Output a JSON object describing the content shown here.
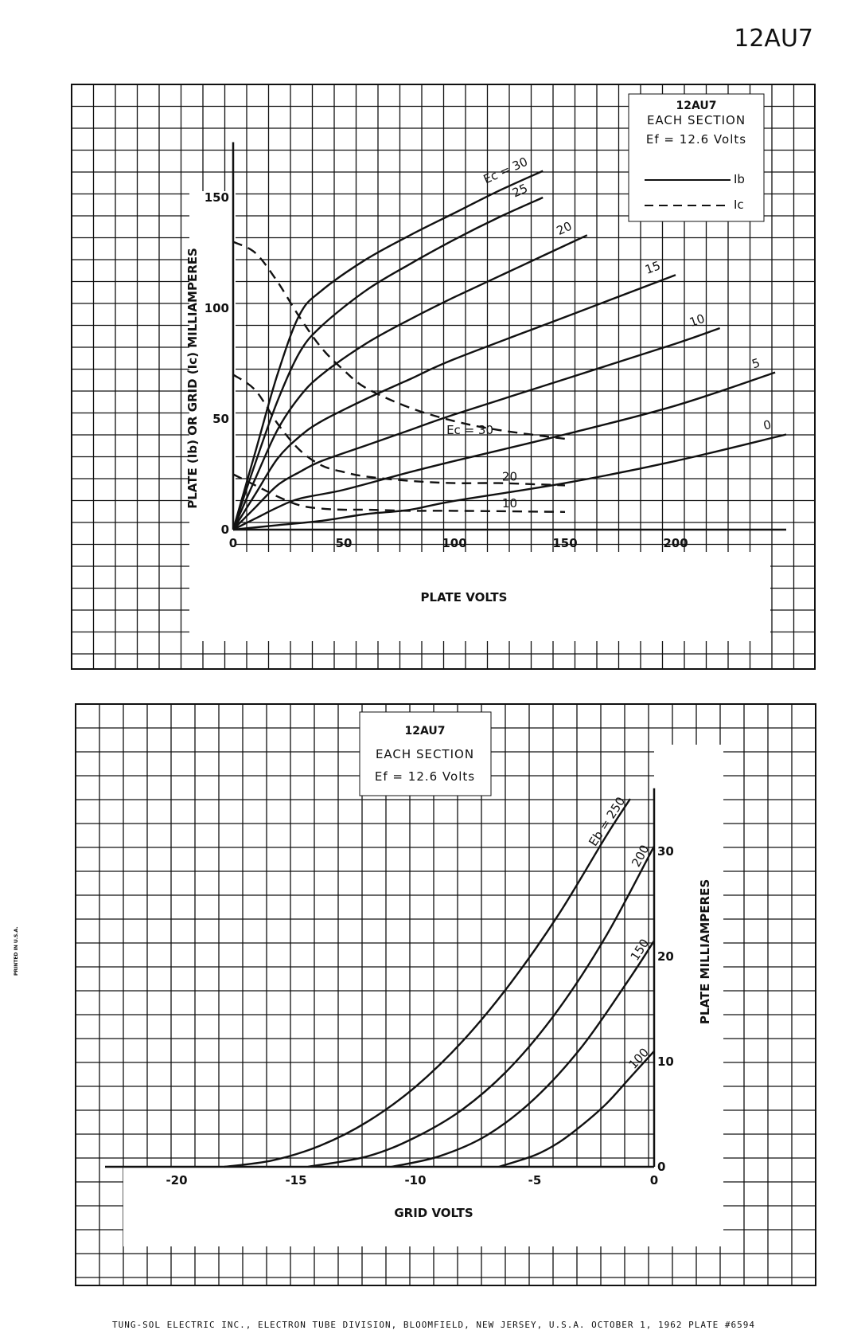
{
  "page": {
    "header_title": "12AU7",
    "footer_text": "TUNG-SOL ELECTRIC INC.,  ELECTRON TUBE DIVISION,  BLOOMFIELD, NEW JERSEY, U.S.A. OCTOBER 1, 1962  PLATE #6594",
    "side_stamp": "PRINTED IN U.S.A."
  },
  "colors": {
    "ink": "#111111",
    "paper": "#ffffff"
  },
  "chart_data": [
    {
      "type": "line",
      "title": "12AU7",
      "subtitle": "EACH SECTION",
      "filament": "Ef = 12.6 Volts",
      "xlabel": "PLATE VOLTS",
      "ylabel": "PLATE (Ib) OR GRID (Ic) MILLIAMPERES",
      "xlim": [
        0,
        250
      ],
      "ylim": [
        0,
        175
      ],
      "xticks": [
        0,
        50,
        100,
        150,
        200
      ],
      "yticks": [
        0,
        50,
        100,
        150
      ],
      "grid": true,
      "legend": {
        "position": "top-right",
        "entries": [
          {
            "label": "Ib",
            "style": "solid"
          },
          {
            "label": "Ic",
            "style": "dashed"
          }
        ]
      },
      "series": [
        {
          "name": "30",
          "quantity": "Ib",
          "label": "Ec = 30",
          "style": "solid",
          "x": [
            0,
            10,
            20,
            30,
            40,
            60,
            80,
            100,
            120,
            140
          ],
          "y": [
            0,
            35,
            70,
            97,
            108,
            122,
            133,
            143,
            153,
            162
          ]
        },
        {
          "name": "25",
          "quantity": "Ib",
          "label": "25",
          "style": "solid",
          "x": [
            0,
            10,
            20,
            30,
            40,
            60,
            80,
            100,
            120,
            140
          ],
          "y": [
            0,
            30,
            58,
            80,
            92,
            108,
            120,
            131,
            141,
            150
          ]
        },
        {
          "name": "20",
          "quantity": "Ib",
          "label": "20",
          "style": "solid",
          "x": [
            0,
            10,
            20,
            30,
            40,
            60,
            80,
            100,
            130,
            160
          ],
          "y": [
            0,
            23,
            45,
            60,
            70,
            84,
            95,
            105,
            119,
            133
          ]
        },
        {
          "name": "15",
          "quantity": "Ib",
          "label": "15",
          "style": "solid",
          "x": [
            0,
            10,
            20,
            30,
            40,
            60,
            80,
            100,
            150,
            200
          ],
          "y": [
            0,
            16,
            32,
            42,
            49,
            59,
            68,
            77,
            96,
            115
          ]
        },
        {
          "name": "10",
          "quantity": "Ib",
          "label": "10",
          "style": "solid",
          "x": [
            0,
            10,
            20,
            30,
            40,
            60,
            80,
            100,
            150,
            200,
            220
          ],
          "y": [
            0,
            10,
            20,
            26,
            31,
            38,
            45,
            52,
            68,
            84,
            91
          ]
        },
        {
          "name": "5",
          "quantity": "Ib",
          "label": "5",
          "style": "solid",
          "x": [
            0,
            10,
            20,
            30,
            50,
            80,
            100,
            150,
            200,
            245
          ],
          "y": [
            0,
            5,
            10,
            14,
            18,
            26,
            31,
            43,
            56,
            71
          ]
        },
        {
          "name": "0",
          "quantity": "Ib",
          "label": "0",
          "style": "solid",
          "x": [
            0,
            20,
            40,
            60,
            80,
            100,
            150,
            200,
            250
          ],
          "y": [
            0,
            2,
            4,
            7,
            9,
            13,
            21,
            31,
            43
          ]
        },
        {
          "name": "30",
          "quantity": "Ic",
          "label": "Ec = 30",
          "style": "dashed",
          "x": [
            0,
            10,
            20,
            30,
            40,
            50,
            60,
            80,
            100,
            120,
            150
          ],
          "y": [
            130,
            125,
            112,
            96,
            82,
            72,
            64,
            55,
            49,
            45,
            41
          ]
        },
        {
          "name": "20",
          "quantity": "Ic",
          "label": "20",
          "style": "dashed",
          "x": [
            0,
            10,
            20,
            30,
            40,
            50,
            60,
            80,
            100,
            120,
            150
          ],
          "y": [
            70,
            63,
            48,
            36,
            29,
            26,
            24,
            22,
            21,
            21,
            20
          ]
        },
        {
          "name": "10",
          "quantity": "Ic",
          "label": "10",
          "style": "dashed",
          "x": [
            0,
            10,
            20,
            30,
            40,
            50,
            60,
            80,
            100,
            150
          ],
          "y": [
            25,
            20,
            15,
            11,
            9.5,
            9,
            9,
            8.5,
            8.5,
            8
          ]
        }
      ]
    },
    {
      "type": "line",
      "title": "12AU7",
      "subtitle": "EACH SECTION",
      "filament": "Ef = 12.6 Volts",
      "xlabel": "GRID VOLTS",
      "ylabel": "PLATE MILLIAMPERES",
      "xlim": [
        -23,
        0
      ],
      "ylim": [
        0,
        36
      ],
      "xticks": [
        -20,
        -15,
        -10,
        -5,
        0
      ],
      "yticks": [
        0,
        10,
        20,
        30
      ],
      "grid": true,
      "series": [
        {
          "name": "250",
          "label": "Eb = 250",
          "style": "solid",
          "x": [
            -18,
            -16,
            -14,
            -12,
            -10,
            -8,
            -6,
            -4,
            -2,
            -1
          ],
          "y": [
            0,
            0.6,
            2.0,
            4.3,
            7.6,
            12,
            17.5,
            24,
            31.5,
            35
          ]
        },
        {
          "name": "200",
          "label": "200",
          "style": "solid",
          "x": [
            -14.5,
            -12,
            -10,
            -8,
            -6,
            -4,
            -2,
            0
          ],
          "y": [
            0,
            1.0,
            2.8,
            5.5,
            9.5,
            15,
            22,
            30.5
          ]
        },
        {
          "name": "150",
          "label": "150",
          "style": "solid",
          "x": [
            -11,
            -9,
            -7,
            -5,
            -3,
            -1,
            0
          ],
          "y": [
            0,
            1.0,
            3.0,
            6.5,
            11.5,
            18,
            21.5
          ]
        },
        {
          "name": "100",
          "label": "100",
          "style": "solid",
          "x": [
            -6.5,
            -5,
            -4,
            -3,
            -2,
            -1,
            0
          ],
          "y": [
            0,
            1.1,
            2.3,
            4.0,
            6.0,
            8.5,
            11
          ]
        }
      ]
    }
  ]
}
